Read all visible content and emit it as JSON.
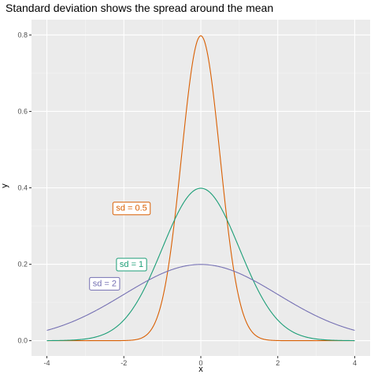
{
  "chart_data": {
    "type": "line",
    "title": "Standard deviation shows the spread around the mean",
    "xlabel": "x",
    "ylabel": "y",
    "xlim": [
      -4.4,
      4.4
    ],
    "ylim": [
      -0.04,
      0.84
    ],
    "x_ticks": [
      -4,
      -2,
      0,
      2,
      4
    ],
    "x_tick_labels": [
      "-4",
      "-2",
      "0",
      "2",
      "4"
    ],
    "y_ticks": [
      0.0,
      0.2,
      0.4,
      0.6,
      0.8
    ],
    "y_tick_labels": [
      "0.0",
      "0.2",
      "0.4",
      "0.6",
      "0.8"
    ],
    "grid": true,
    "legend": "none",
    "x_range": [
      -4,
      4
    ],
    "series": [
      {
        "sd": 0.5,
        "mean": 0,
        "color": "#d95f02"
      },
      {
        "sd": 1,
        "mean": 0,
        "color": "#1b9e77"
      },
      {
        "sd": 2,
        "mean": 0,
        "color": "#7570b3"
      }
    ],
    "annotations": [
      {
        "label": "sd = 0.5",
        "x": -1.8,
        "y": 0.348,
        "color": "#d95f02"
      },
      {
        "label": "sd = 1",
        "x": -1.8,
        "y": 0.201,
        "color": "#1b9e77"
      },
      {
        "label": "sd = 2",
        "x": -2.5,
        "y": 0.151,
        "color": "#7570b3"
      }
    ],
    "colors": {
      "panel": "#ebebeb",
      "grid_major": "#ffffff"
    }
  }
}
